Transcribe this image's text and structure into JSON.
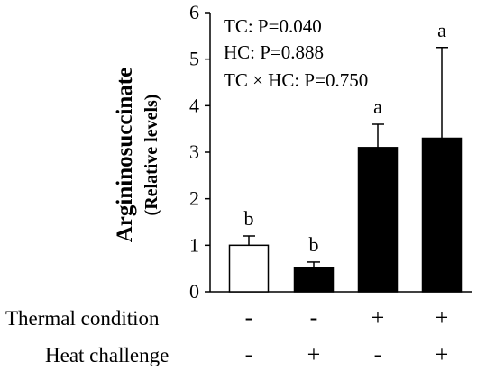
{
  "chart_data": {
    "type": "bar",
    "ylabel": "Argininosuccinate",
    "ylabel_sub": "(Relative levels)",
    "ylim": [
      0,
      6
    ],
    "yticks": [
      "0",
      "1",
      "2",
      "3",
      "4",
      "5",
      "6"
    ],
    "grid": false,
    "categories": [
      "1",
      "2",
      "3",
      "4"
    ],
    "values": [
      1.0,
      0.52,
      3.1,
      3.3
    ],
    "error_upper": [
      0.2,
      0.12,
      0.5,
      1.95
    ],
    "bar_fill": [
      "#ffffff",
      "#000000",
      "#000000",
      "#000000"
    ],
    "letters": [
      "b",
      "b",
      "a",
      "a"
    ],
    "stats": [
      "TC: P=0.040",
      "HC: P=0.888",
      "TC × HC: P=0.750"
    ],
    "factors": [
      {
        "label": "Thermal condition",
        "levels": [
          "-",
          "-",
          "+",
          "+"
        ]
      },
      {
        "label": "Heat challenge",
        "levels": [
          "-",
          "+",
          "-",
          "+"
        ]
      }
    ]
  }
}
